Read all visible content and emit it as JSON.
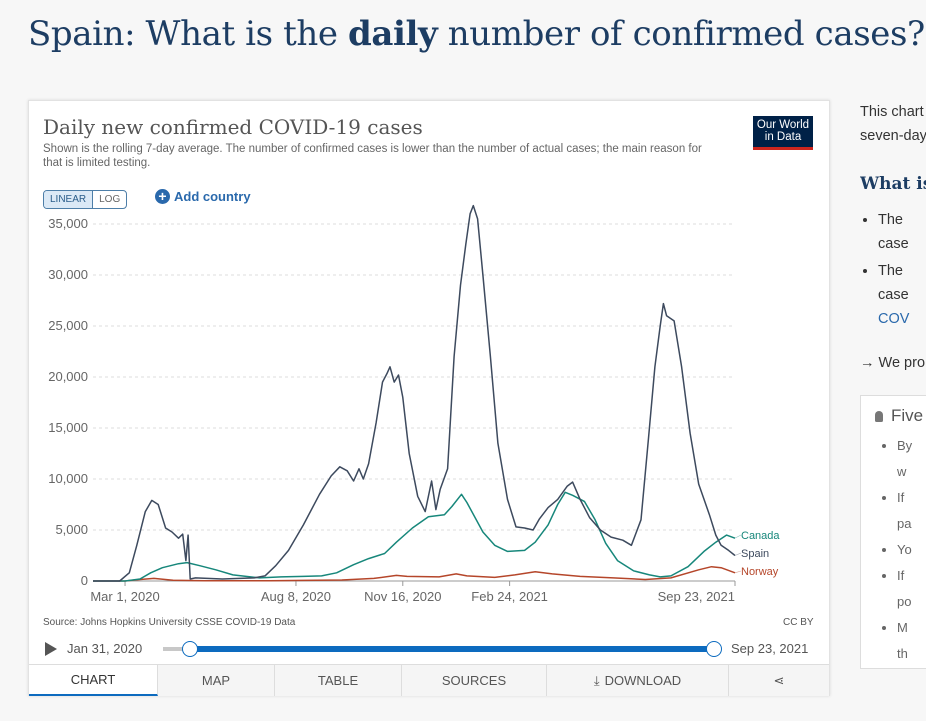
{
  "page": {
    "title_prefix": "Spain: What is the ",
    "title_bold": "daily",
    "title_suffix": " number of confirmed cases?"
  },
  "chart_card": {
    "title": "Daily new confirmed COVID-19 cases",
    "subtitle": "Shown is the rolling 7-day average. The number of confirmed cases is lower than the number of actual cases; the main reason for that is limited testing.",
    "logo_line1": "Our World",
    "logo_line2": "in Data",
    "scale_linear": "LINEAR",
    "scale_log": "LOG",
    "add_country": "Add country",
    "source": "Source: Johns Hopkins University CSSE COVID-19 Data",
    "license": "CC BY",
    "timeline_start": "Jan 31, 2020",
    "timeline_end": "Sep 23, 2021",
    "tabs": [
      "CHART",
      "MAP",
      "TABLE",
      "SOURCES",
      "DOWNLOAD"
    ]
  },
  "chart_data": {
    "type": "line",
    "title": "Daily new confirmed COVID-19 cases",
    "ylim": [
      0,
      35000
    ],
    "yticks": [
      0,
      5000,
      10000,
      15000,
      20000,
      25000,
      30000,
      35000
    ],
    "ytick_labels": [
      "0",
      "5,000",
      "10,000",
      "15,000",
      "20,000",
      "25,000",
      "30,000",
      "35,000"
    ],
    "xlim": [
      "2020-01-31",
      "2021-09-23"
    ],
    "xticks": [
      "2020-03-01",
      "2020-08-08",
      "2020-11-16",
      "2021-02-24",
      "2021-09-23"
    ],
    "xtick_labels": [
      "Mar 1, 2020",
      "Aug 8, 2020",
      "Nov 16, 2020",
      "Feb 24, 2021",
      "Sep 23, 2021"
    ],
    "grid": "horizontal dashed",
    "series": [
      {
        "name": "Spain",
        "color": "#3d4a5e",
        "points": [
          [
            "2020-01-31",
            0
          ],
          [
            "2020-02-25",
            0
          ],
          [
            "2020-03-05",
            800
          ],
          [
            "2020-03-12",
            3500
          ],
          [
            "2020-03-20",
            6800
          ],
          [
            "2020-03-26",
            7900
          ],
          [
            "2020-04-01",
            7500
          ],
          [
            "2020-04-08",
            5200
          ],
          [
            "2020-04-14",
            4800
          ],
          [
            "2020-04-20",
            4200
          ],
          [
            "2020-04-24",
            4600
          ],
          [
            "2020-04-27",
            2000
          ],
          [
            "2020-04-29",
            4500
          ],
          [
            "2020-05-01",
            200
          ],
          [
            "2020-05-06",
            300
          ],
          [
            "2020-05-31",
            200
          ],
          [
            "2020-06-30",
            300
          ],
          [
            "2020-07-10",
            500
          ],
          [
            "2020-07-20",
            1500
          ],
          [
            "2020-08-01",
            3000
          ],
          [
            "2020-08-15",
            5500
          ],
          [
            "2020-08-30",
            8500
          ],
          [
            "2020-09-10",
            10300
          ],
          [
            "2020-09-18",
            11200
          ],
          [
            "2020-09-25",
            10800
          ],
          [
            "2020-10-01",
            9800
          ],
          [
            "2020-10-06",
            11000
          ],
          [
            "2020-10-10",
            10000
          ],
          [
            "2020-10-15",
            11500
          ],
          [
            "2020-10-22",
            15500
          ],
          [
            "2020-10-28",
            19500
          ],
          [
            "2020-11-01",
            20300
          ],
          [
            "2020-11-04",
            21000
          ],
          [
            "2020-11-08",
            19500
          ],
          [
            "2020-11-12",
            20200
          ],
          [
            "2020-11-16",
            18000
          ],
          [
            "2020-11-22",
            12500
          ],
          [
            "2020-11-30",
            8300
          ],
          [
            "2020-12-07",
            6800
          ],
          [
            "2020-12-13",
            9800
          ],
          [
            "2020-12-17",
            7000
          ],
          [
            "2020-12-21",
            9000
          ],
          [
            "2020-12-28",
            11000
          ],
          [
            "2021-01-03",
            22000
          ],
          [
            "2021-01-09",
            29000
          ],
          [
            "2021-01-14",
            33000
          ],
          [
            "2021-01-18",
            36000
          ],
          [
            "2021-01-21",
            36800
          ],
          [
            "2021-01-25",
            35500
          ],
          [
            "2021-01-30",
            30000
          ],
          [
            "2021-02-06",
            22000
          ],
          [
            "2021-02-13",
            13500
          ],
          [
            "2021-02-22",
            8000
          ],
          [
            "2021-03-02",
            5300
          ],
          [
            "2021-03-10",
            5200
          ],
          [
            "2021-03-18",
            5000
          ],
          [
            "2021-03-24",
            6100
          ],
          [
            "2021-04-01",
            7200
          ],
          [
            "2021-04-10",
            8000
          ],
          [
            "2021-04-19",
            9300
          ],
          [
            "2021-04-24",
            9700
          ],
          [
            "2021-05-01",
            8000
          ],
          [
            "2021-05-10",
            6200
          ],
          [
            "2021-05-20",
            5000
          ],
          [
            "2021-05-30",
            4300
          ],
          [
            "2021-06-10",
            4000
          ],
          [
            "2021-06-18",
            3500
          ],
          [
            "2021-06-27",
            6000
          ],
          [
            "2021-07-04",
            14000
          ],
          [
            "2021-07-10",
            21000
          ],
          [
            "2021-07-15",
            25000
          ],
          [
            "2021-07-18",
            27200
          ],
          [
            "2021-07-21",
            26000
          ],
          [
            "2021-07-28",
            25500
          ],
          [
            "2021-08-04",
            21000
          ],
          [
            "2021-08-12",
            14500
          ],
          [
            "2021-08-20",
            9500
          ],
          [
            "2021-08-30",
            6500
          ],
          [
            "2021-09-05",
            4500
          ],
          [
            "2021-09-10",
            3500
          ],
          [
            "2021-09-17",
            3000
          ],
          [
            "2021-09-23",
            2500
          ]
        ]
      },
      {
        "name": "Canada",
        "color": "#17877b",
        "points": [
          [
            "2020-01-31",
            0
          ],
          [
            "2020-03-01",
            0
          ],
          [
            "2020-03-15",
            200
          ],
          [
            "2020-03-25",
            800
          ],
          [
            "2020-04-05",
            1300
          ],
          [
            "2020-04-20",
            1700
          ],
          [
            "2020-04-28",
            1800
          ],
          [
            "2020-05-10",
            1500
          ],
          [
            "2020-05-25",
            1100
          ],
          [
            "2020-06-10",
            600
          ],
          [
            "2020-07-05",
            300
          ],
          [
            "2020-07-25",
            400
          ],
          [
            "2020-08-15",
            450
          ],
          [
            "2020-09-01",
            500
          ],
          [
            "2020-09-15",
            800
          ],
          [
            "2020-10-01",
            1600
          ],
          [
            "2020-10-15",
            2200
          ],
          [
            "2020-10-30",
            2700
          ],
          [
            "2020-11-10",
            3800
          ],
          [
            "2020-11-25",
            5200
          ],
          [
            "2020-12-10",
            6300
          ],
          [
            "2020-12-25",
            6500
          ],
          [
            "2021-01-01",
            7300
          ],
          [
            "2021-01-10",
            8500
          ],
          [
            "2021-01-15",
            7700
          ],
          [
            "2021-01-30",
            4800
          ],
          [
            "2021-02-10",
            3500
          ],
          [
            "2021-02-22",
            2900
          ],
          [
            "2021-03-10",
            3000
          ],
          [
            "2021-03-20",
            3800
          ],
          [
            "2021-04-01",
            5500
          ],
          [
            "2021-04-10",
            7500
          ],
          [
            "2021-04-17",
            8700
          ],
          [
            "2021-04-24",
            8400
          ],
          [
            "2021-05-05",
            7800
          ],
          [
            "2021-05-15",
            6000
          ],
          [
            "2021-05-25",
            3700
          ],
          [
            "2021-06-05",
            2000
          ],
          [
            "2021-06-20",
            1000
          ],
          [
            "2021-07-05",
            600
          ],
          [
            "2021-07-15",
            400
          ],
          [
            "2021-07-25",
            500
          ],
          [
            "2021-08-10",
            1400
          ],
          [
            "2021-08-25",
            2900
          ],
          [
            "2021-09-05",
            3800
          ],
          [
            "2021-09-15",
            4500
          ],
          [
            "2021-09-23",
            4200
          ]
        ]
      },
      {
        "name": "Norway",
        "color": "#b5462a",
        "points": [
          [
            "2020-01-31",
            0
          ],
          [
            "2020-03-01",
            0
          ],
          [
            "2020-03-15",
            150
          ],
          [
            "2020-03-28",
            250
          ],
          [
            "2020-04-15",
            80
          ],
          [
            "2020-05-15",
            20
          ],
          [
            "2020-07-15",
            20
          ],
          [
            "2020-08-15",
            60
          ],
          [
            "2020-09-20",
            100
          ],
          [
            "2020-10-20",
            250
          ],
          [
            "2020-11-10",
            550
          ],
          [
            "2020-11-20",
            450
          ],
          [
            "2020-12-20",
            400
          ],
          [
            "2021-01-05",
            700
          ],
          [
            "2021-01-15",
            500
          ],
          [
            "2021-02-10",
            350
          ],
          [
            "2021-03-01",
            600
          ],
          [
            "2021-03-20",
            900
          ],
          [
            "2021-04-05",
            700
          ],
          [
            "2021-05-01",
            450
          ],
          [
            "2021-06-01",
            300
          ],
          [
            "2021-07-01",
            150
          ],
          [
            "2021-07-25",
            300
          ],
          [
            "2021-08-20",
            1100
          ],
          [
            "2021-09-01",
            1400
          ],
          [
            "2021-09-10",
            1300
          ],
          [
            "2021-09-23",
            800
          ]
        ]
      }
    ]
  },
  "sidebar": {
    "intro_line1": "This chart",
    "intro_line2": "seven-day",
    "heading": "What is",
    "bullet1_line1": "The",
    "bullet1_line2": "case",
    "bullet2_line1": "The",
    "bullet2_line2": "case",
    "bullet2_link": "COV",
    "promo": "→ We pro",
    "box_title": "Five",
    "box_items": [
      "By",
      "w",
      "If",
      "pa",
      "Yo",
      "If",
      "po",
      "M",
      "th"
    ]
  }
}
